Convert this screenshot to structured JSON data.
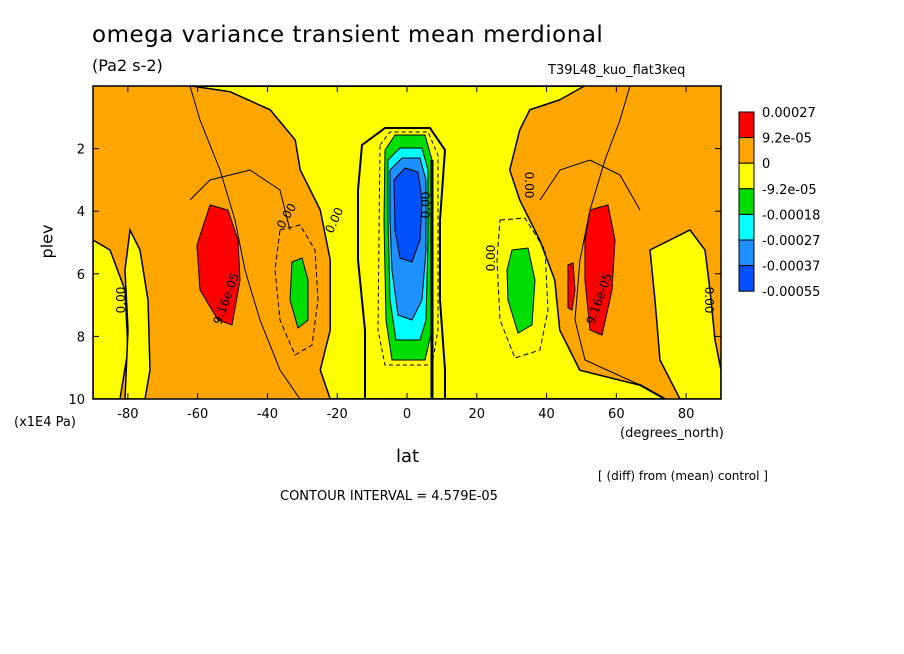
{
  "title": "omega variance transient mean merdional",
  "units": "(Pa2 s-2)",
  "run_id": "T39L48_kuo_flat3keq",
  "y_axis_label": "plev",
  "y_units": "(x1E4 Pa)",
  "x_axis_label": "lat",
  "x_units": "(degrees_north)",
  "diff_note": "[ (diff) from (mean) control ]",
  "contour_interval": "CONTOUR INTERVAL = 4.579E-05",
  "chart_data": {
    "type": "heatmap",
    "title": "omega variance transient mean merdional",
    "xlabel": "lat",
    "ylabel": "plev",
    "xlim": [
      -90,
      90
    ],
    "ylim": [
      10,
      0
    ],
    "x_ticks": [
      -80,
      -60,
      -40,
      -20,
      0,
      20,
      40,
      60,
      80
    ],
    "y_ticks": [
      2,
      4,
      6,
      8,
      10
    ],
    "legend": {
      "placement": "right",
      "colors": [
        "#ff0000",
        "#ffa500",
        "#ffff00",
        "#00dd00",
        "#00ffff",
        "#1e90ff",
        "#0050ff"
      ],
      "labels": [
        "0.00027",
        "9.2e-05",
        "0",
        "-9.2e-05",
        "-0.00018",
        "-0.00027",
        "-0.00037",
        "-0.00055"
      ]
    },
    "contour_labels": [
      "0.00",
      "0.00",
      "0.00",
      "0.00",
      "0.00",
      "0.00",
      "0.00",
      "9.16e-05",
      "9.16e-05"
    ],
    "contour_interval": 4.579e-05
  }
}
